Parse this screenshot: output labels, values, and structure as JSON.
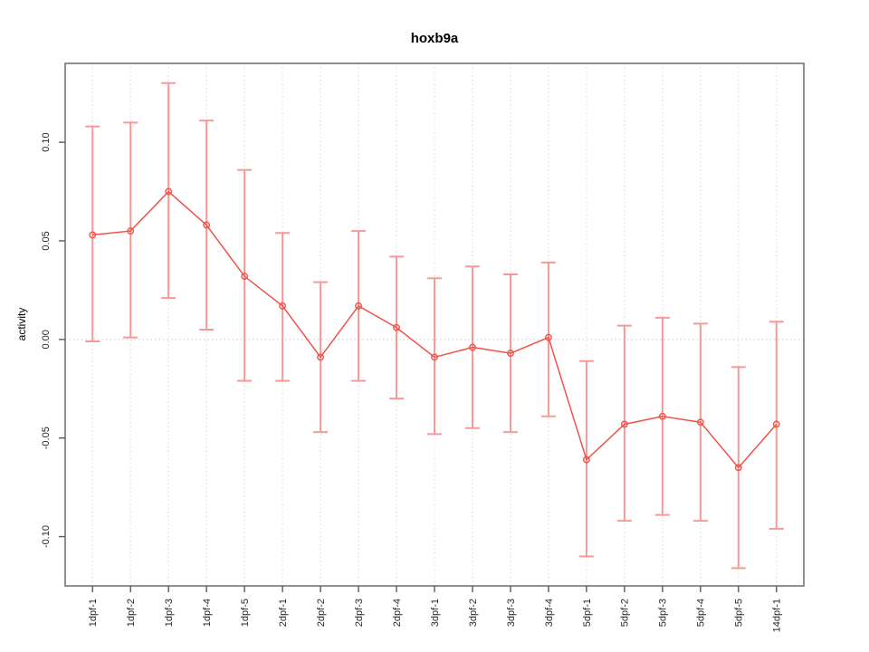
{
  "chart_data": {
    "type": "line",
    "title": "hoxb9a",
    "ylabel": "activity",
    "xlabel": "",
    "categories": [
      "1dpf-1",
      "1dpf-2",
      "1dpf-3",
      "1dpf-4",
      "1dpf-5",
      "2dpf-1",
      "2dpf-2",
      "2dpf-3",
      "2dpf-4",
      "3dpf-1",
      "3dpf-2",
      "3dpf-3",
      "3dpf-4",
      "5dpf-1",
      "5dpf-2",
      "5dpf-3",
      "5dpf-4",
      "5dpf-5",
      "14dpf-1"
    ],
    "series": [
      {
        "name": "activity",
        "values": [
          0.053,
          0.055,
          0.075,
          0.058,
          0.032,
          0.017,
          -0.009,
          0.017,
          0.006,
          -0.009,
          -0.004,
          -0.007,
          0.001,
          -0.061,
          -0.043,
          -0.039,
          -0.042,
          -0.065,
          -0.043
        ],
        "error_low": [
          -0.001,
          0.001,
          0.021,
          0.005,
          -0.021,
          -0.021,
          -0.047,
          -0.021,
          -0.03,
          -0.048,
          -0.045,
          -0.047,
          -0.039,
          -0.11,
          -0.092,
          -0.089,
          -0.092,
          -0.116,
          -0.096
        ],
        "error_high": [
          0.108,
          0.11,
          0.13,
          0.111,
          0.086,
          0.054,
          0.029,
          0.055,
          0.042,
          0.031,
          0.037,
          0.033,
          0.039,
          -0.011,
          0.007,
          0.011,
          0.008,
          -0.014,
          0.009
        ]
      }
    ],
    "yticks": {
      "values": [
        0.1,
        0.05,
        0.0,
        -0.05,
        -0.1
      ],
      "labels": [
        "0.10",
        "0.05",
        "0.00",
        "-0.05",
        "-0.10"
      ]
    },
    "ylim": [
      -0.125,
      0.14
    ],
    "zero_line": true,
    "grid": "vertical-dotted",
    "legend": "none",
    "marker": "open-circle",
    "colors": {
      "line": "#f0524a",
      "marker": "#f0524a",
      "error_bar": "#f79a96",
      "gridline": "#d9d9d9",
      "zero_line": "#c9c9c9",
      "frame": "#757575",
      "tick": "#5a5a5a",
      "text": "#262626",
      "background": "#ffffff"
    }
  }
}
